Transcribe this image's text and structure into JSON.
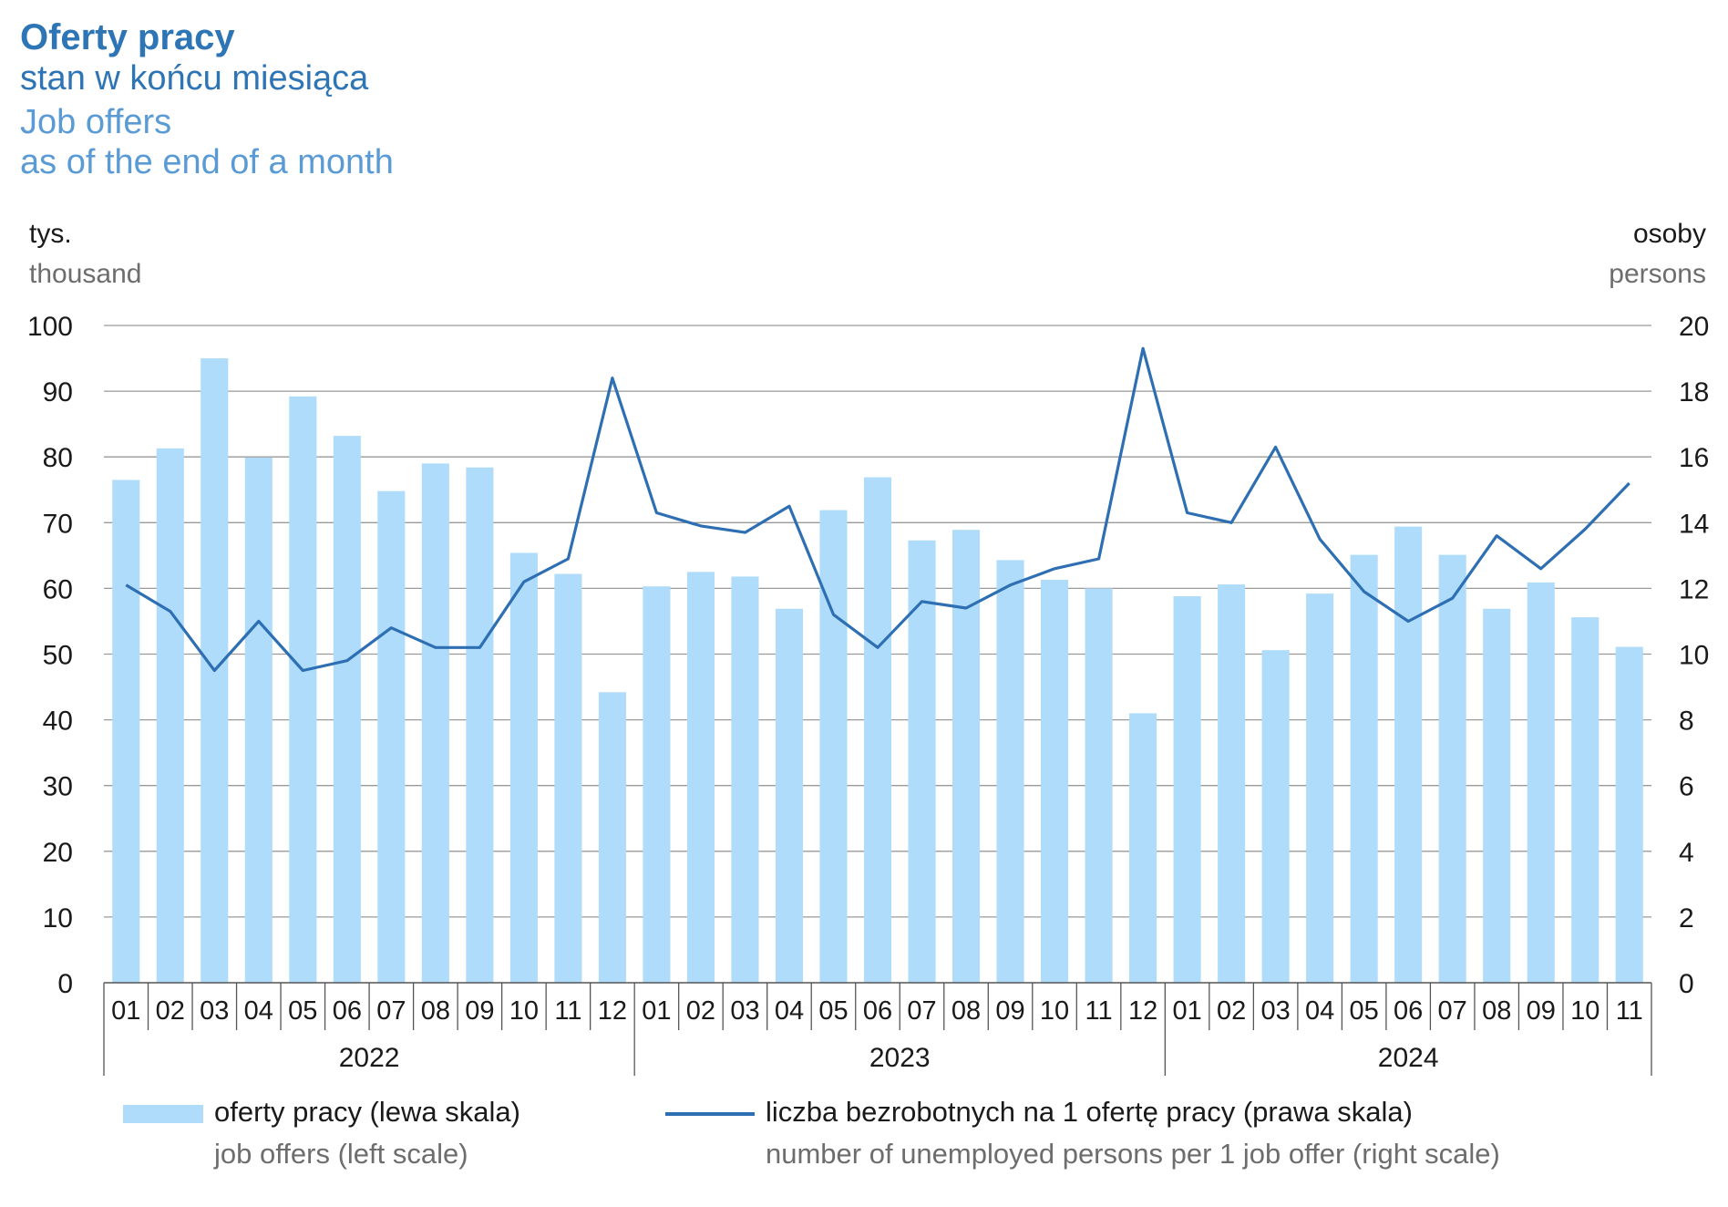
{
  "header": {
    "title_pl": "Oferty pracy",
    "subtitle_pl": "stan w końcu miesiąca",
    "title_en": "Job offers",
    "subtitle_en": "as of the end of a month"
  },
  "axes": {
    "left_unit_pl": "tys.",
    "left_unit_en": "thousand",
    "right_unit_pl": "osoby",
    "right_unit_en": "persons"
  },
  "legend": {
    "bars_pl": "oferty pracy (lewa skala)",
    "bars_en": "job offers (left scale)",
    "line_pl": "liczba bezrobotnych na 1 ofertę pracy (prawa skala)",
    "line_en": "number of unemployed persons per 1 job offer (right scale)"
  },
  "colors": {
    "bars": "#aedcfa",
    "line": "#2e6fb3",
    "grid": "#9a9a9a",
    "title": "#2e75b6",
    "title_en": "#5b9bd5"
  },
  "chart_data": {
    "type": "bar",
    "categories": [
      "01",
      "02",
      "03",
      "04",
      "05",
      "06",
      "07",
      "08",
      "09",
      "10",
      "11",
      "12",
      "01",
      "02",
      "03",
      "04",
      "05",
      "06",
      "07",
      "08",
      "09",
      "10",
      "11",
      "12",
      "01",
      "02",
      "03",
      "04",
      "05",
      "06",
      "07",
      "08",
      "09",
      "10",
      "11"
    ],
    "years": [
      {
        "label": "2022",
        "months": 12
      },
      {
        "label": "2023",
        "months": 12
      },
      {
        "label": "2024",
        "months": 11
      }
    ],
    "left_axis": {
      "ylim": [
        0,
        100
      ],
      "ticks": [
        0,
        10,
        20,
        30,
        40,
        50,
        60,
        70,
        80,
        90,
        100
      ]
    },
    "right_axis": {
      "ylim": [
        0,
        20
      ],
      "ticks": [
        0,
        2,
        4,
        6,
        8,
        10,
        12,
        14,
        16,
        18,
        20
      ]
    },
    "grid": true,
    "legend_position": "bottom",
    "series": [
      {
        "name": "oferty pracy (lewa skala)",
        "type": "bar",
        "axis": "left",
        "values": [
          76.5,
          81.3,
          95.0,
          79.9,
          89.2,
          83.2,
          74.8,
          79.0,
          78.4,
          65.4,
          62.2,
          44.2,
          60.3,
          62.5,
          61.8,
          56.9,
          71.9,
          76.9,
          67.3,
          68.9,
          64.3,
          61.3,
          60.0,
          41.0,
          58.8,
          60.6,
          50.6,
          59.2,
          65.1,
          69.4,
          65.1,
          56.9,
          60.9,
          55.6,
          51.1
        ]
      },
      {
        "name": "liczba bezrobotnych na 1 ofertę pracy (prawa skala)",
        "type": "line",
        "axis": "right",
        "values": [
          12.1,
          11.3,
          9.5,
          11.0,
          9.5,
          9.8,
          10.8,
          10.2,
          10.2,
          12.2,
          12.9,
          18.4,
          14.3,
          13.9,
          13.7,
          14.5,
          11.2,
          10.2,
          11.6,
          11.4,
          12.1,
          12.6,
          12.9,
          19.3,
          14.3,
          14.0,
          16.3,
          13.5,
          11.9,
          11.0,
          11.7,
          13.6,
          12.6,
          13.8,
          15.2
        ]
      }
    ]
  }
}
